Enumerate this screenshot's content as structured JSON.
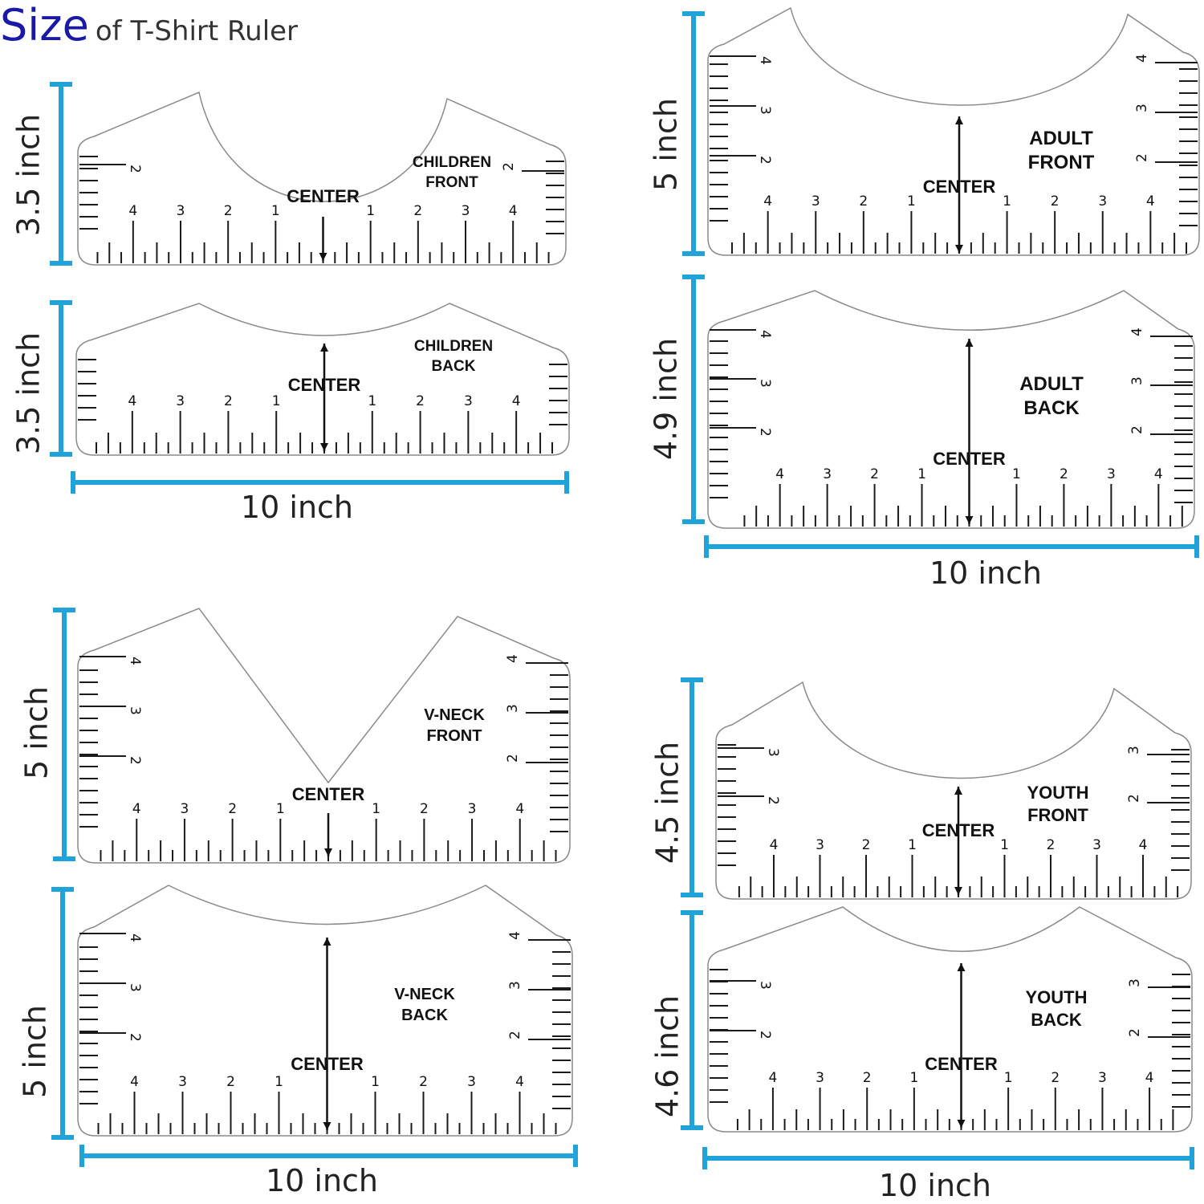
{
  "title": {
    "emphasis": "Size",
    "rest": "of T-Shirt Ruler"
  },
  "colors": {
    "dimension": "#1fa3d9",
    "title": "#1a1aa6"
  },
  "center_label": "CENTER",
  "width_label": "10 inch",
  "rulers": [
    {
      "id": "children-front",
      "label": [
        "CHILDREN",
        "FRONT"
      ],
      "height": "3.5 inch",
      "neck": "round",
      "side_numbers": [
        "2"
      ],
      "bottom_numbers": [
        "4",
        "3",
        "2",
        "1",
        "1",
        "2",
        "3",
        "4"
      ],
      "center_arrow": "down"
    },
    {
      "id": "children-back",
      "label": [
        "CHILDREN",
        "BACK"
      ],
      "height": "3.5 inch",
      "neck": "shallow",
      "side_numbers": [],
      "bottom_numbers": [
        "4",
        "3",
        "2",
        "1",
        "1",
        "2",
        "3",
        "4"
      ],
      "center_arrow": "both"
    },
    {
      "id": "adult-front",
      "label": [
        "ADULT",
        "FRONT"
      ],
      "height": "5 inch",
      "neck": "round",
      "side_numbers": [
        "4",
        "3",
        "2"
      ],
      "bottom_numbers": [
        "4",
        "3",
        "2",
        "1",
        "1",
        "2",
        "3",
        "4"
      ],
      "center_arrow": "both"
    },
    {
      "id": "adult-back",
      "label": [
        "ADULT",
        "BACK"
      ],
      "height": "4.9 inch",
      "neck": "shallow",
      "side_numbers": [
        "4",
        "3",
        "2"
      ],
      "bottom_numbers": [
        "4",
        "3",
        "2",
        "1",
        "1",
        "2",
        "3",
        "4"
      ],
      "center_arrow": "both"
    },
    {
      "id": "vneck-front",
      "label": [
        "V-NECK",
        "FRONT"
      ],
      "height": "5 inch",
      "neck": "v",
      "side_numbers": [
        "4",
        "3",
        "2"
      ],
      "bottom_numbers": [
        "4",
        "3",
        "2",
        "1",
        "1",
        "2",
        "3",
        "4"
      ],
      "center_arrow": "down"
    },
    {
      "id": "vneck-back",
      "label": [
        "V-NECK",
        "BACK"
      ],
      "height": "5 inch",
      "neck": "shallow",
      "side_numbers": [
        "4",
        "3",
        "2"
      ],
      "bottom_numbers": [
        "4",
        "3",
        "2",
        "1",
        "1",
        "2",
        "3",
        "4"
      ],
      "center_arrow": "both"
    },
    {
      "id": "youth-front",
      "label": [
        "YOUTH",
        "FRONT"
      ],
      "height": "4.5 inch",
      "neck": "round",
      "side_numbers": [
        "3",
        "2"
      ],
      "bottom_numbers": [
        "4",
        "3",
        "2",
        "1",
        "1",
        "2",
        "3",
        "4"
      ],
      "center_arrow": "both"
    },
    {
      "id": "youth-back",
      "label": [
        "YOUTH",
        "BACK"
      ],
      "height": "4.6 inch",
      "neck": "shallow",
      "side_numbers": [
        "3",
        "2"
      ],
      "bottom_numbers": [
        "4",
        "3",
        "2",
        "1",
        "1",
        "2",
        "3",
        "4"
      ],
      "center_arrow": "both"
    }
  ]
}
